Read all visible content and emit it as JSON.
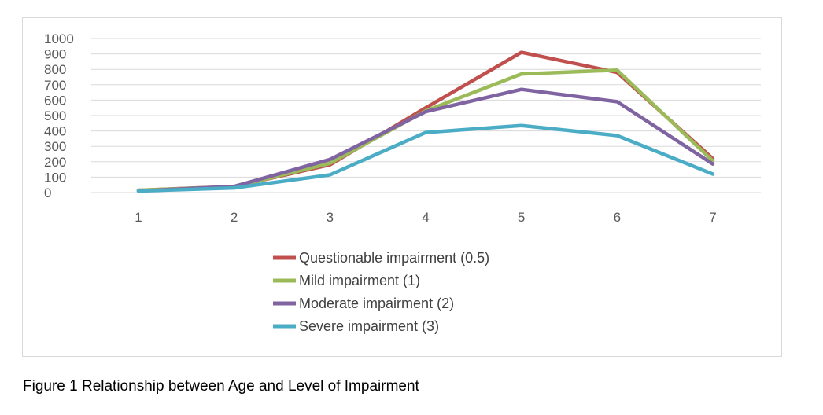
{
  "chart_data": {
    "type": "line",
    "x": [
      1,
      2,
      3,
      4,
      5,
      6,
      7
    ],
    "series": [
      {
        "name": "Questionable impairment (0.5)",
        "color": "#c0504d",
        "values": [
          15,
          40,
          180,
          550,
          910,
          780,
          220
        ]
      },
      {
        "name": "Mild impairment (1)",
        "color": "#9bbb59",
        "values": [
          15,
          38,
          190,
          530,
          770,
          795,
          205
        ]
      },
      {
        "name": "Moderate impairment (2)",
        "color": "#8064a2",
        "values": [
          10,
          40,
          215,
          525,
          670,
          590,
          185
        ]
      },
      {
        "name": "Severe impairment (3)",
        "color": "#4bacc6",
        "values": [
          10,
          30,
          115,
          390,
          435,
          370,
          120
        ]
      }
    ],
    "ylim": [
      0,
      1000
    ],
    "yticks": [
      0,
      100,
      200,
      300,
      400,
      500,
      600,
      700,
      800,
      900,
      1000
    ],
    "grid": true,
    "legend_position": "bottom",
    "title": "",
    "xlabel": "",
    "ylabel": ""
  },
  "caption": "Figure 1 Relationship between Age and Level of Impairment"
}
